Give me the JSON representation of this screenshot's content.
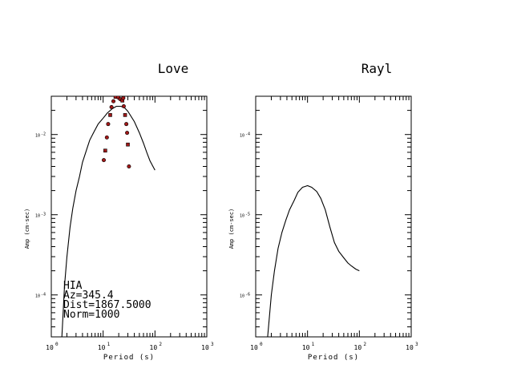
{
  "station": {
    "code": "HIA",
    "azimuth": "Az=345.4",
    "distance": "Dist=1867.5000",
    "norm": "Norm=1000"
  },
  "chart_data": [
    {
      "type": "line",
      "title": "Love",
      "xlabel": "Period (s)",
      "ylabel": "Amp (cm-sec)",
      "xscale": "log",
      "yscale": "log",
      "xlim": [
        1,
        1000
      ],
      "ylim": [
        3e-05,
        0.03
      ],
      "grid": false,
      "x_ticks": [
        {
          "base": "10",
          "exp": "0"
        },
        {
          "base": "10",
          "exp": "1"
        },
        {
          "base": "10",
          "exp": "2"
        },
        {
          "base": "10",
          "exp": "3"
        }
      ],
      "y_ticks": [
        {
          "base": "10",
          "exp": "-4",
          "value": 0.0001
        },
        {
          "base": "10",
          "exp": "-3",
          "value": 0.001
        },
        {
          "base": "10",
          "exp": "-2",
          "value": 0.01
        }
      ],
      "series": [
        {
          "kind": "line",
          "color": "#000000",
          "x": [
            1.6,
            1.8,
            2.0,
            2.3,
            2.6,
            3.0,
            3.5,
            4.0,
            4.8,
            5.5,
            6.5,
            8,
            10,
            12,
            15,
            18,
            22,
            26,
            30,
            40,
            50,
            60,
            70,
            80,
            100
          ],
          "y": [
            3e-05,
            0.00013,
            0.0003,
            0.0007,
            0.0012,
            0.002,
            0.003,
            0.0045,
            0.0065,
            0.0085,
            0.0105,
            0.0135,
            0.016,
            0.0185,
            0.021,
            0.0225,
            0.0225,
            0.0215,
            0.0195,
            0.0145,
            0.0105,
            0.0078,
            0.0059,
            0.0047,
            0.0036
          ]
        },
        {
          "kind": "points",
          "color": "#a01818",
          "points": [
            [
              10.3,
              0.0048
            ],
            [
              11.0,
              0.0063
            ],
            [
              11.8,
              0.0092
            ],
            [
              12.5,
              0.0135
            ],
            [
              13.7,
              0.0175
            ],
            [
              14.5,
              0.022
            ],
            [
              15.8,
              0.026
            ],
            [
              17.3,
              0.0295
            ],
            [
              19.5,
              0.029
            ],
            [
              21.5,
              0.0275
            ],
            [
              23.5,
              0.0265
            ],
            [
              24.5,
              0.0285
            ],
            [
              25.0,
              0.0225
            ],
            [
              26.5,
              0.0175
            ],
            [
              28.0,
              0.0135
            ],
            [
              29.0,
              0.0105
            ],
            [
              30.0,
              0.0075
            ],
            [
              31.5,
              0.004
            ]
          ]
        }
      ]
    },
    {
      "type": "line",
      "title": "Rayl",
      "xlabel": "Period (s)",
      "ylabel": "Amp (cm-sec)",
      "xscale": "log",
      "yscale": "log",
      "xlim": [
        1,
        1000
      ],
      "ylim": [
        3e-07,
        0.0003
      ],
      "grid": false,
      "x_ticks": [
        {
          "base": "10",
          "exp": "0"
        },
        {
          "base": "10",
          "exp": "1"
        },
        {
          "base": "10",
          "exp": "2"
        },
        {
          "base": "10",
          "exp": "3"
        }
      ],
      "y_ticks": [
        {
          "base": "10",
          "exp": "-6",
          "value": 1e-06
        },
        {
          "base": "10",
          "exp": "-5",
          "value": 1e-05
        },
        {
          "base": "10",
          "exp": "-4",
          "value": 0.0001
        }
      ],
      "series": [
        {
          "kind": "line",
          "color": "#000000",
          "x": [
            1.7,
            2.0,
            2.3,
            2.7,
            3.2,
            3.8,
            4.5,
            5.5,
            6.5,
            8,
            10,
            12,
            15,
            18,
            22,
            27,
            33,
            40,
            50,
            60,
            70,
            85,
            100
          ],
          "y": [
            3e-07,
            1e-06,
            2e-06,
            3.8e-06,
            6e-06,
            8.5e-06,
            1.15e-05,
            1.5e-05,
            1.9e-05,
            2.2e-05,
            2.3e-05,
            2.2e-05,
            1.95e-05,
            1.6e-05,
            1.15e-05,
            7e-06,
            4.5e-06,
            3.5e-06,
            2.9e-06,
            2.5e-06,
            2.3e-06,
            2.1e-06,
            2e-06
          ]
        }
      ]
    }
  ]
}
